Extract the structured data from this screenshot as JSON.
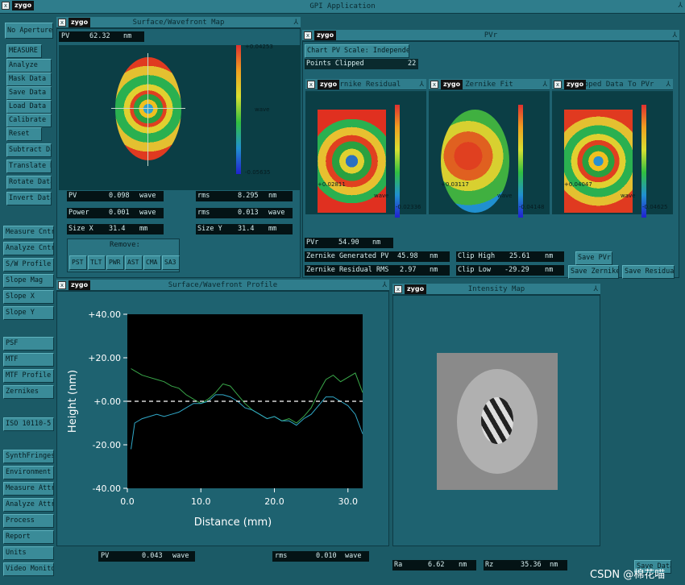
{
  "app": {
    "title": "GPI Application",
    "logo": "zygo"
  },
  "sidebar": {
    "items": [
      "No Aperture",
      "MEASURE",
      "Analyze",
      "Mask Data",
      "Save Data",
      "Load Data",
      "Calibrate",
      "Reset",
      "Subtract Da",
      "Translate D",
      "Rotate Data",
      "Invert Data",
      "Measure Cntrl",
      "Analyze Cntrl",
      "S/W Profile",
      "Slope Mag",
      "Slope X",
      "Slope Y",
      "PSF",
      "MTF",
      "MTF Profile",
      "Zernikes",
      "ISO 10110-5",
      "SynthFringes",
      "Environment Te",
      "Measure Attr",
      "Analyze Attr",
      "Process",
      "Report",
      "Units",
      "Video Monitor"
    ]
  },
  "surface_map": {
    "title": "Surface/Wavefront Map",
    "pv_label": "PV",
    "pv_value": "62.32",
    "pv_unit": "nm",
    "scale_max": "+0.04253",
    "scale_unit": "wave",
    "scale_min": "-0.05635",
    "fields": [
      [
        "PV",
        "0.098",
        "wave"
      ],
      [
        "rms",
        "8.295",
        "nm"
      ],
      [
        "Power",
        "0.001",
        "wave"
      ],
      [
        "rms",
        "0.013",
        "wave"
      ],
      [
        "Size X",
        "31.4",
        "mm"
      ],
      [
        "Size Y",
        "31.4",
        "mm"
      ]
    ],
    "remove_label": "Remove:",
    "remove_buttons": [
      "PST",
      "TLT",
      "PWR",
      "AST",
      "CMA",
      "SA3"
    ]
  },
  "pvr": {
    "title": "PVr",
    "chart_scale": "Chart PV Scale: Independent",
    "points_clipped_label": "Points Clipped",
    "points_clipped": "22",
    "zernike_residual": {
      "title": "Zernike Residual",
      "max": "+0.02811",
      "unit": "wave",
      "min": "-0.02336"
    },
    "zernike_fit": {
      "title": "Zernike Fit",
      "max": "+0.03117",
      "unit": "wave",
      "min": "-0.04148"
    },
    "clipped": {
      "title": "Clipped Data To PVr",
      "max": "+0.04047",
      "unit": "wave",
      "min": "-0.04625"
    },
    "pvr_label": "PVr",
    "pvr_value": "54.90",
    "pvr_unit": "nm",
    "gen_pv": [
      "Zernike Generated PV",
      "45.98",
      "nm"
    ],
    "res_rms": [
      "Zernike Residual RMS",
      "2.97",
      "nm"
    ],
    "clip_high": [
      "Clip High",
      "25.61",
      "nm"
    ],
    "clip_low": [
      "Clip Low",
      "-29.29",
      "nm"
    ],
    "save_pvr": "Save PVr",
    "save_zernike": "Save Zernike",
    "save_residual": "Save Residual"
  },
  "profile": {
    "title": "Surface/Wavefront Profile",
    "pv": [
      "PV",
      "0.043",
      "wave"
    ],
    "rms": [
      "rms",
      "0.010",
      "wave"
    ]
  },
  "intensity": {
    "title": "Intensity Map",
    "ra": [
      "Ra",
      "6.62",
      "nm"
    ],
    "rz": [
      "Rz",
      "35.36",
      "nm"
    ],
    "save": "Save Data"
  },
  "watermark": "CSDN @棉花喵",
  "chart_data": {
    "type": "line",
    "xlabel": "Distance (mm)",
    "ylabel": "Height (nm)",
    "xlim": [
      0,
      32
    ],
    "ylim": [
      -40,
      40
    ],
    "xticks": [
      "0.0",
      "10.0",
      "20.0",
      "30.0"
    ],
    "yticks": [
      "+40.00",
      "+20.00",
      "+0.00",
      "-20.00",
      "-40.00"
    ],
    "series": [
      {
        "color": "#3aa84a",
        "x": [
          0.5,
          1,
          2,
          3,
          4,
          5,
          6,
          7,
          8,
          9,
          10,
          11,
          12,
          13,
          14,
          15,
          16,
          17,
          18,
          19,
          20,
          21,
          22,
          23,
          24,
          25,
          26,
          27,
          28,
          29,
          30,
          31,
          32
        ],
        "y": [
          15,
          14,
          12,
          11,
          10,
          9,
          7,
          6,
          3,
          1,
          -1,
          1,
          4,
          8,
          7,
          3,
          -1,
          -4,
          -6,
          -8,
          -7,
          -9,
          -8,
          -10,
          -7,
          -3,
          4,
          10,
          12,
          9,
          11,
          13,
          4
        ]
      },
      {
        "color": "#30a8c8",
        "x": [
          0.5,
          1,
          2,
          3,
          4,
          5,
          6,
          7,
          8,
          9,
          10,
          11,
          12,
          13,
          14,
          15,
          16,
          17,
          18,
          19,
          20,
          21,
          22,
          23,
          24,
          25,
          26,
          27,
          28,
          29,
          30,
          31,
          32
        ],
        "y": [
          -22,
          -10,
          -8,
          -7,
          -6,
          -7,
          -6,
          -5,
          -3,
          -1,
          -1,
          0,
          3,
          3,
          2,
          0,
          -3,
          -4,
          -6,
          -8,
          -7,
          -9,
          -9,
          -11,
          -8,
          -6,
          -2,
          2,
          2,
          0,
          -2,
          -6,
          -15
        ]
      },
      {
        "color": "#ffffff",
        "dashed": true,
        "x": [
          0,
          32
        ],
        "y": [
          0,
          0
        ]
      }
    ]
  }
}
